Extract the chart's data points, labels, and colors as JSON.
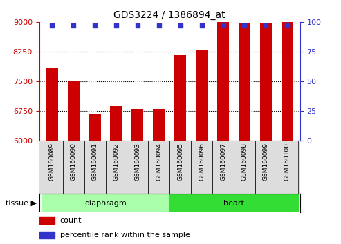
{
  "title": "GDS3224 / 1386894_at",
  "samples": [
    "GSM160089",
    "GSM160090",
    "GSM160091",
    "GSM160092",
    "GSM160093",
    "GSM160094",
    "GSM160095",
    "GSM160096",
    "GSM160097",
    "GSM160098",
    "GSM160099",
    "GSM160100"
  ],
  "counts": [
    7850,
    7490,
    6660,
    6870,
    6790,
    6800,
    8160,
    8280,
    9400,
    8980,
    8960,
    9350
  ],
  "percentiles": [
    97,
    97,
    97,
    97,
    97,
    97,
    97,
    97,
    97,
    97,
    97,
    97
  ],
  "bar_color": "#cc0000",
  "pct_color": "#3333cc",
  "ylim_left": [
    6000,
    9000
  ],
  "ylim_right": [
    0,
    100
  ],
  "yticks_left": [
    6000,
    6750,
    7500,
    8250,
    9000
  ],
  "yticks_right": [
    0,
    25,
    50,
    75,
    100
  ],
  "gridlines": [
    6750,
    7500,
    8250
  ],
  "diaphragm_color": "#aaffaa",
  "heart_color": "#33dd33",
  "tissue_groups": [
    {
      "label": "diaphragm",
      "start": 0,
      "end": 5,
      "color": "#aaffaa"
    },
    {
      "label": "heart",
      "start": 6,
      "end": 11,
      "color": "#33dd33"
    }
  ],
  "legend_count_label": "count",
  "legend_pct_label": "percentile rank within the sample",
  "bar_width": 0.55,
  "xticklabel_fontsize": 6.5,
  "yticklabel_fontsize": 8
}
